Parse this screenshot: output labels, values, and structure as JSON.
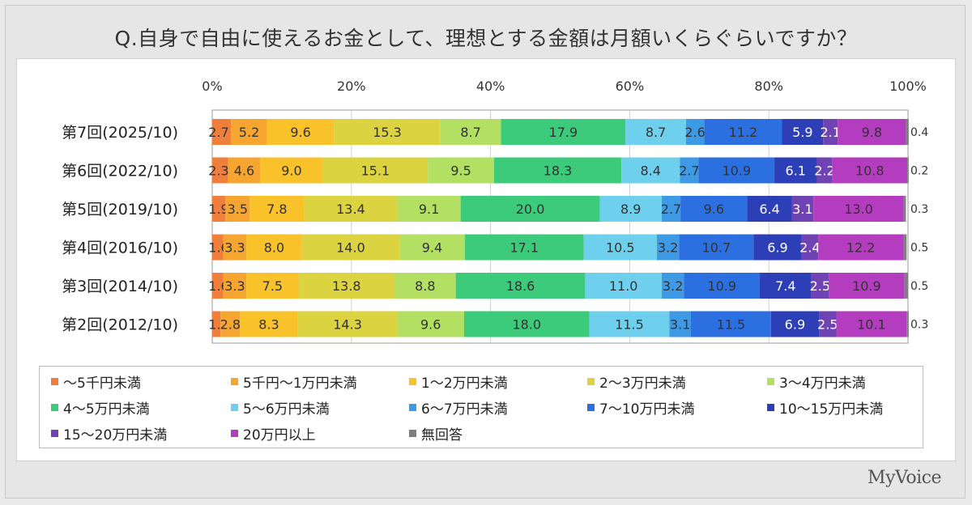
{
  "header": {
    "title": "Q.自身で自由に使えるお金として、理想とする金額は月額いくらぐらいですか？"
  },
  "brand": {
    "name": "MyVoice"
  },
  "chart_data": {
    "type": "bar",
    "orientation": "horizontal",
    "stacked": true,
    "percent_scale": true,
    "xlim": [
      0,
      100
    ],
    "x_ticks": [
      "0%",
      "20%",
      "40%",
      "60%",
      "80%",
      "100%"
    ],
    "x_tick_position": "top",
    "grid": true,
    "legend_placement": "bottom",
    "categories": [
      "第7回(2025/10)",
      "第6回(2022/10)",
      "第5回(2019/10)",
      "第4回(2016/10)",
      "第3回(2014/10)",
      "第2回(2012/10)"
    ],
    "series": [
      {
        "name": "～5千円未満",
        "color": "#f07f3c",
        "values": [
          2.7,
          2.3,
          1.9,
          1.6,
          1.6,
          1.2
        ]
      },
      {
        "name": "5千円～1万円未満",
        "color": "#f7a531",
        "values": [
          5.2,
          4.6,
          3.5,
          3.3,
          3.3,
          2.8
        ]
      },
      {
        "name": "1～2万円未満",
        "color": "#f9c12a",
        "values": [
          9.6,
          9.0,
          7.8,
          8.0,
          7.5,
          8.3
        ]
      },
      {
        "name": "2～3万円未満",
        "color": "#dbd340",
        "values": [
          15.3,
          15.1,
          13.4,
          14.0,
          13.8,
          14.3
        ]
      },
      {
        "name": "3～4万円未満",
        "color": "#b3df62",
        "values": [
          8.7,
          9.5,
          9.1,
          9.4,
          8.8,
          9.6
        ]
      },
      {
        "name": "4～5万円未満",
        "color": "#3ccb7a",
        "values": [
          17.9,
          18.3,
          20.0,
          17.1,
          18.6,
          18.0
        ]
      },
      {
        "name": "5～6万円未満",
        "color": "#6fd0ee",
        "values": [
          8.7,
          8.4,
          8.9,
          10.5,
          11.0,
          11.5
        ]
      },
      {
        "name": "6～7万円未満",
        "color": "#3f9ae6",
        "values": [
          2.6,
          2.7,
          2.7,
          3.2,
          3.2,
          3.1
        ]
      },
      {
        "name": "7～10万円未満",
        "color": "#2b6fe0",
        "values": [
          11.2,
          10.9,
          9.6,
          10.7,
          10.9,
          11.5
        ]
      },
      {
        "name": "10～15万円未満",
        "color": "#2c3fb7",
        "values": [
          5.9,
          6.1,
          6.4,
          6.9,
          7.4,
          6.9
        ]
      },
      {
        "name": "15～20万円未満",
        "color": "#7043b5",
        "values": [
          2.1,
          2.2,
          3.1,
          2.4,
          2.5,
          2.5
        ]
      },
      {
        "name": "20万円以上",
        "color": "#b43cbf",
        "values": [
          9.8,
          10.8,
          13.0,
          12.2,
          10.9,
          10.1
        ]
      },
      {
        "name": "無回答",
        "color": "#7f7f7f",
        "values": [
          0.4,
          0.2,
          0.3,
          0.5,
          0.5,
          0.3
        ]
      }
    ]
  }
}
